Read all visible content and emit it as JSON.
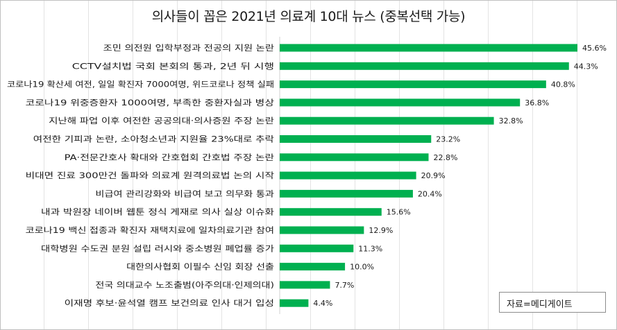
{
  "chart_data": {
    "type": "bar",
    "orientation": "horizontal",
    "title": "의사들이 꼽은 2021년 의료계 10대 뉴스 (중복선택 가능)",
    "categories": [
      "조민 의전원 입학부정과 전공의 지원 논란",
      "CCTV설치법 국회 본회의 통과, 2년 뒤 시행",
      "코로나19 확산세 여전, 일일 확진자 7000여명, 위드코로나 정책 실패",
      "코로나19 위중증환자 1000여명, 부족한 중환자실과 병상",
      "지난해 파업 이후 여전한 공공의대·의사증원 주장 논란",
      "여전한 기피과 논란, 소아청소년과 지원율 23%대로 추락",
      "PA·전문간호사 확대와 간호협회 간호법 주장 논란",
      "비대면 진료 300만건 돌파와 의료계 원격의료법 논의 시작",
      "비급여 관리강화와 비급여 보고 의무화 통과",
      "내과 박원장 네이버 웹툰 정식 게재로 의사 실상 이슈화",
      "코로나19 백신 접종과 확진자 재택치료에 일차의료기관 참여",
      "대학병원 수도권 분원 설립 러시와 중소병원 폐업률 증가",
      "대한의사협회 이필수 신임 회장 선출",
      "전국 의대교수 노조출범(아주의대·인제의대)",
      "이재명 후보·윤석열 캠프 보건의료 인사 대거 입성"
    ],
    "values": [
      45.6,
      44.3,
      40.8,
      36.8,
      32.8,
      23.2,
      22.8,
      20.9,
      20.4,
      15.6,
      12.9,
      11.3,
      10.0,
      7.7,
      4.4
    ],
    "value_labels": [
      "45.6%",
      "44.3%",
      "40.8%",
      "36.8%",
      "32.8%",
      "23.2%",
      "22.8%",
      "20.9%",
      "20.4%",
      "15.6%",
      "12.9%",
      "11.3%",
      "10.0%",
      "7.7%",
      "4.4%"
    ],
    "xlim": [
      0,
      45.6
    ],
    "bar_color": "#00b050",
    "grid": true,
    "legend": false
  },
  "source_note": "자료=메디게이트"
}
